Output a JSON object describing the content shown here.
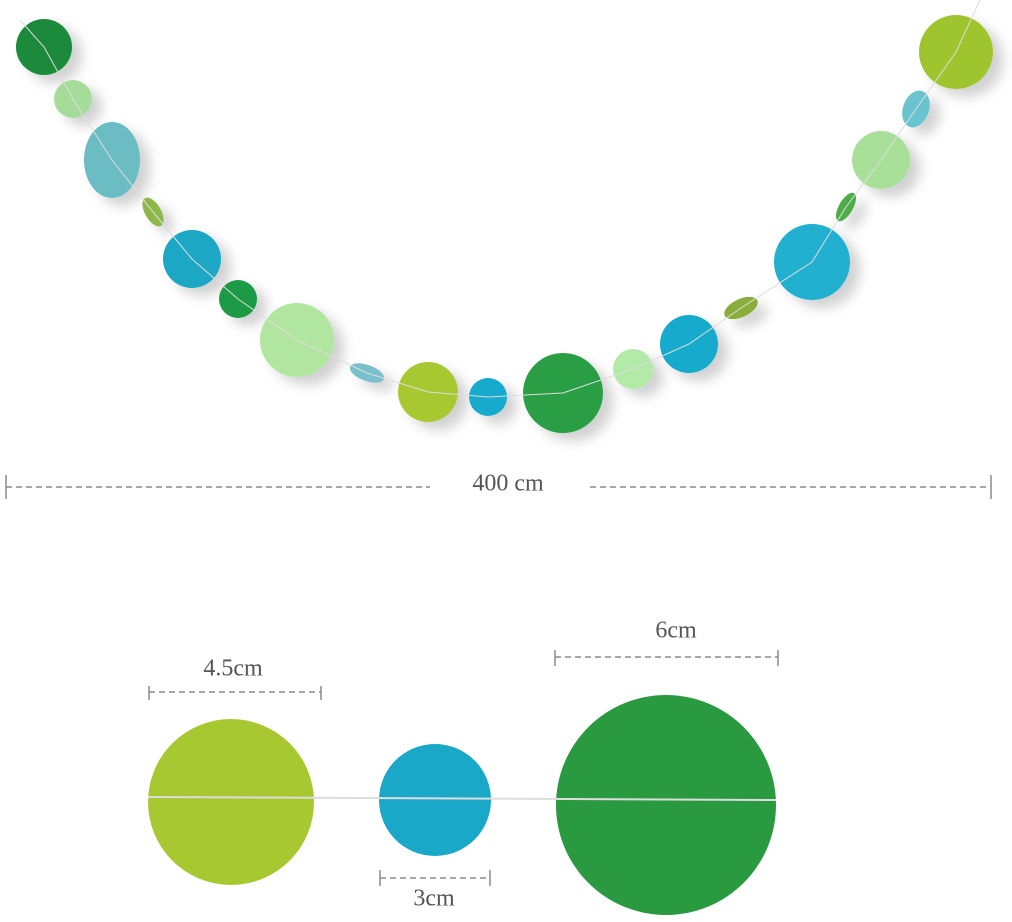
{
  "dimensions": {
    "length": "400 cm",
    "sizes": [
      "4.5cm",
      "3cm",
      "6cm"
    ]
  }
}
